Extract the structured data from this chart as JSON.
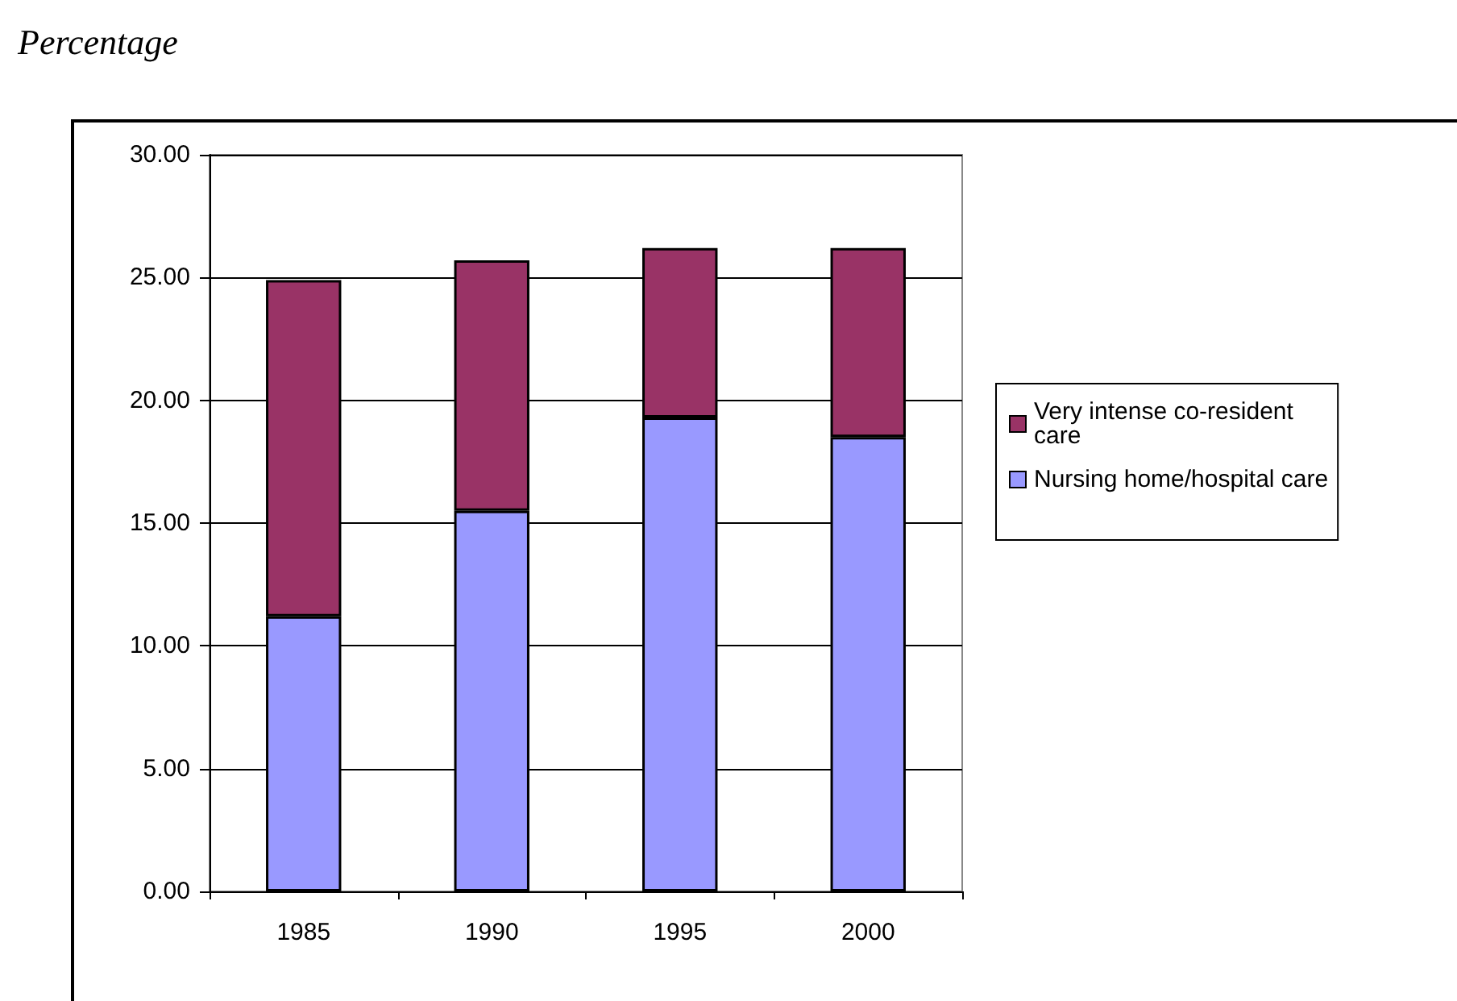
{
  "chart_data": {
    "type": "bar",
    "title": "Percentage",
    "stacked": true,
    "categories": [
      "1985",
      "1990",
      "1995",
      "2000"
    ],
    "series": [
      {
        "name": "Nursing home/hospital care",
        "color": "#9999ff",
        "values": [
          11.2,
          15.5,
          19.3,
          18.5
        ]
      },
      {
        "name": "Very intense co-resident care",
        "color": "#993366",
        "values": [
          13.7,
          10.2,
          6.9,
          7.7
        ]
      }
    ],
    "ylim": [
      0,
      30
    ],
    "yticks": [
      {
        "value": 0,
        "label": "0.00"
      },
      {
        "value": 5,
        "label": "5.00"
      },
      {
        "value": 10,
        "label": "10.00"
      },
      {
        "value": 15,
        "label": "15.00"
      },
      {
        "value": 20,
        "label": "20.00"
      },
      {
        "value": 25,
        "label": "25.00"
      },
      {
        "value": 30,
        "label": "30.00"
      }
    ],
    "grid": "y",
    "legend": "right"
  }
}
